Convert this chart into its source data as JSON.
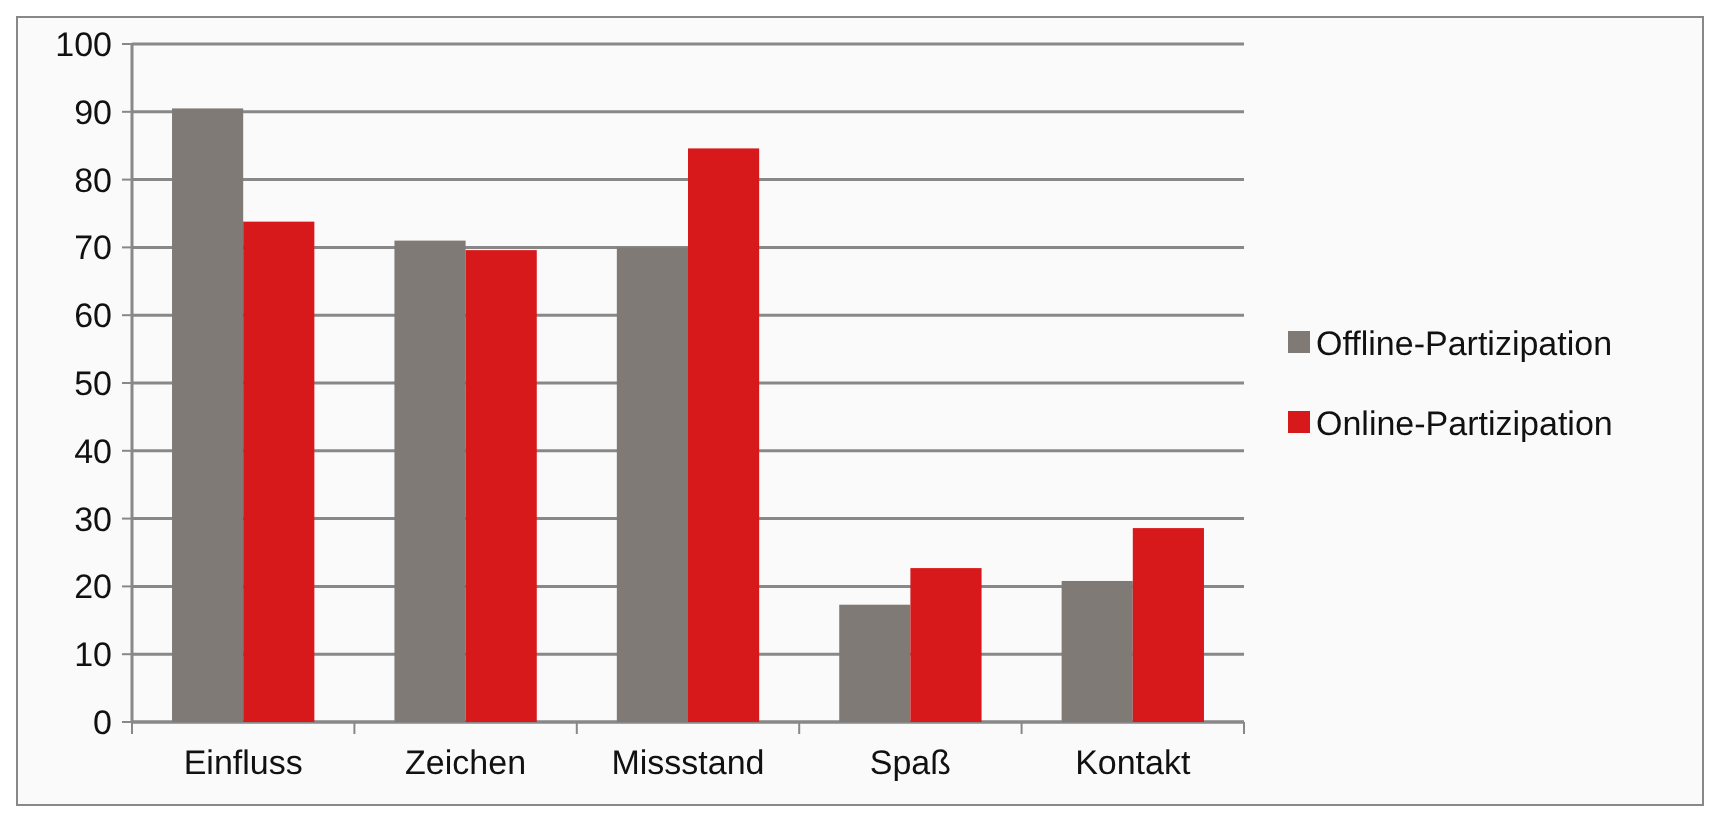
{
  "chart_data": {
    "type": "bar",
    "categories": [
      "Einfluss",
      "Zeichen",
      "Missstand",
      "Spaß",
      "Kontakt"
    ],
    "series": [
      {
        "name": "Offline-Partizipation",
        "color": "#7f7a76",
        "values": [
          90.5,
          71,
          70,
          17.3,
          20.8
        ]
      },
      {
        "name": "Online-Partizipation",
        "color": "#d7191c",
        "values": [
          73.8,
          69.6,
          84.6,
          22.7,
          28.6
        ]
      }
    ],
    "ylim": [
      0,
      100
    ],
    "yticks": [
      0,
      10,
      20,
      30,
      40,
      50,
      60,
      70,
      80,
      90,
      100
    ],
    "grid": "y",
    "legend": "right"
  }
}
